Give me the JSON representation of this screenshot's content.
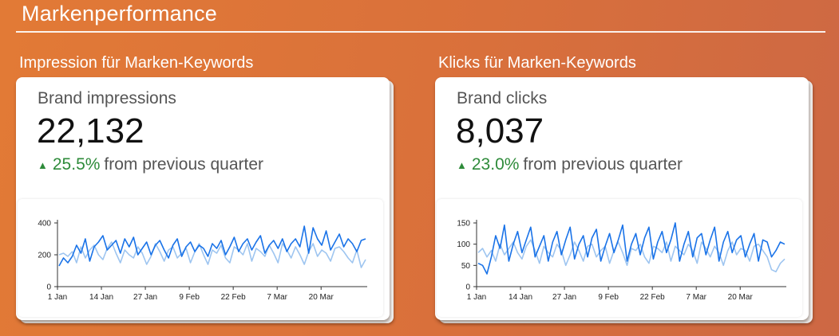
{
  "page_title": "Markenperformance",
  "sections": [
    {
      "title": "Impression für Marken-Keywords",
      "metric_label": "Brand impressions",
      "metric_value": "22,132",
      "delta_icon": "arrow-up-icon",
      "delta_pct": "25.5%",
      "delta_text": "from previous quarter",
      "chart_data": {
        "type": "line",
        "x_ticks": [
          "1 Jan",
          "14 Jan",
          "27 Jan",
          "9 Feb",
          "22 Feb",
          "7 Mar",
          "20 Mar"
        ],
        "y_ticks": [
          0,
          200,
          400
        ],
        "ylim": [
          0,
          400
        ],
        "grid": false,
        "colors": {
          "current": "#1a73e8",
          "previous": "#9ec5f0"
        },
        "series": [
          {
            "values": [
              130,
              180,
              150,
              190,
              260,
              210,
              300,
              160,
              250,
              280,
              320,
              230,
              260,
              290,
              210,
              300,
              250,
              310,
              200,
              240,
              280,
              200,
              260,
              290,
              230,
              180,
              260,
              300,
              190,
              250,
              280,
              220,
              260,
              240,
              190,
              270,
              240,
              290,
              200,
              250,
              310,
              220,
              270,
              300,
              230,
              280,
              320,
              210,
              260,
              290,
              240,
              300,
              220,
              270,
              300,
              250,
              380,
              210,
              370,
              300,
              260,
              350,
              230,
              280,
              330,
              250,
              300,
              270,
              220,
              290,
              300
            ]
          },
          {
            "values": [
              200,
              210,
              190,
              220,
              150,
              250,
              180,
              230,
              260,
              200,
              170,
              240,
              280,
              210,
              150,
              230,
              200,
              180,
              250,
              210,
              140,
              190,
              270,
              220,
              160,
              230,
              250,
              180,
              210,
              240,
              150,
              220,
              270,
              200,
              140,
              230,
              210,
              260,
              180,
              150,
              250,
              230,
              200,
              270,
              160,
              240,
              220,
              190,
              260,
              210,
              150,
              270,
              230,
              180,
              250,
              200,
              140,
              220,
              270,
              190,
              230,
              210,
              160,
              240,
              250,
              220,
              180,
              150,
              230,
              120,
              170
            ]
          }
        ]
      }
    },
    {
      "title": "Klicks für Marken-Keywords",
      "metric_label": "Brand clicks",
      "metric_value": "8,037",
      "delta_icon": "arrow-up-icon",
      "delta_pct": "23.0%",
      "delta_text": "from previous quarter",
      "chart_data": {
        "type": "line",
        "x_ticks": [
          "1 Jan",
          "14 Jan",
          "27 Jan",
          "9 Feb",
          "22 Feb",
          "7 Mar",
          "20 Mar"
        ],
        "y_ticks": [
          0,
          50,
          100,
          150
        ],
        "ylim": [
          0,
          150
        ],
        "grid": false,
        "colors": {
          "current": "#1a73e8",
          "previous": "#9ec5f0"
        },
        "series": [
          {
            "values": [
              55,
              50,
              30,
              70,
              120,
              90,
              145,
              60,
              100,
              130,
              80,
              110,
              140,
              70,
              95,
              120,
              60,
              105,
              130,
              75,
              110,
              140,
              65,
              100,
              120,
              70,
              115,
              135,
              60,
              95,
              125,
              80,
              110,
              145,
              60,
              100,
              125,
              75,
              115,
              140,
              65,
              105,
              130,
              80,
              110,
              150,
              60,
              100,
              130,
              70,
              115,
              125,
              75,
              110,
              140,
              60,
              105,
              130,
              80,
              110,
              120,
              70,
              100,
              125,
              60,
              110,
              105,
              70,
              85,
              105,
              100
            ]
          },
          {
            "values": [
              80,
              90,
              70,
              85,
              60,
              100,
              75,
              90,
              105,
              80,
              65,
              95,
              110,
              85,
              55,
              95,
              80,
              70,
              100,
              85,
              50,
              75,
              105,
              85,
              60,
              95,
              100,
              70,
              85,
              95,
              55,
              85,
              105,
              80,
              50,
              90,
              85,
              100,
              70,
              55,
              95,
              90,
              80,
              105,
              60,
              95,
              85,
              75,
              100,
              85,
              55,
              105,
              90,
              70,
              95,
              80,
              50,
              85,
              105,
              75,
              90,
              85,
              60,
              95,
              100,
              85,
              70,
              40,
              35,
              55,
              65
            ]
          }
        ]
      }
    }
  ]
}
